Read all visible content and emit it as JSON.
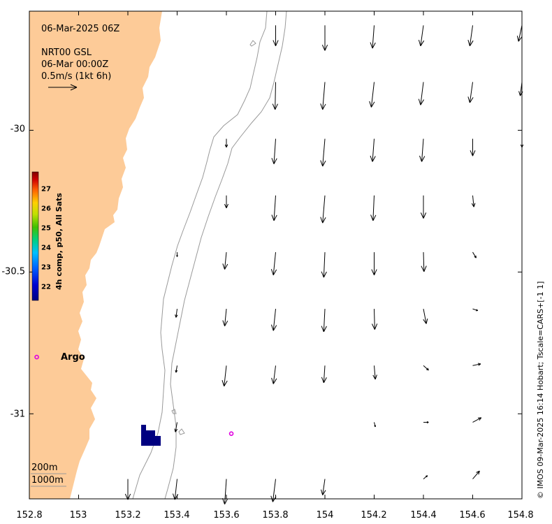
{
  "header": {
    "datetime": "06-Mar-2025 06Z",
    "product": "NRT00 GSL",
    "product_time": "06-Mar 00:00Z",
    "scale_label": "0.5m/s (1kt 6h)"
  },
  "axes": {
    "x_ticks": [
      "152.8",
      "153",
      "153.2",
      "153.4",
      "153.6",
      "153.8",
      "154",
      "154.2",
      "154.4",
      "154.6",
      "154.8"
    ],
    "y_ticks": [
      "-30",
      "-30.5",
      "-31"
    ],
    "x_range": [
      152.8,
      154.8
    ],
    "y_range": [
      -29.58,
      -31.3
    ]
  },
  "colorbar": {
    "label": "4h comp, p50, All Sats",
    "ticks": [
      "27",
      "26",
      "25",
      "24",
      "23",
      "22"
    ],
    "range": [
      21.4,
      27.9
    ]
  },
  "annotations": {
    "argo_label": "Argo",
    "isobath_200": "200m",
    "isobath_1000": "1000m"
  },
  "credit": "© IMOS 09-Mar-2025 16:14 Hobart; Tscale=CARS+[-1 1]",
  "colors": {
    "land": "#fdcb98",
    "argo_marker": "#e000e0",
    "sst_patch": "#000080",
    "isobath": "#999999"
  },
  "chart_data": {
    "type": "vector_field",
    "units": "m/s",
    "argo_floats": [
      {
        "lon": 152.83,
        "lat": -30.8
      },
      {
        "lon": 153.62,
        "lat": -31.07
      }
    ],
    "currents": [
      {
        "lon": 153.2,
        "lat": -31.23,
        "u": 0.0,
        "v": -0.36
      },
      {
        "lon": 153.4,
        "lat": -31.23,
        "u": -0.04,
        "v": -0.36
      },
      {
        "lon": 153.6,
        "lat": -31.23,
        "u": -0.03,
        "v": -0.44
      },
      {
        "lon": 153.8,
        "lat": -31.23,
        "u": -0.05,
        "v": -0.4
      },
      {
        "lon": 154.0,
        "lat": -31.23,
        "u": -0.04,
        "v": -0.28
      },
      {
        "lon": 154.4,
        "lat": -31.23,
        "u": 0.07,
        "v": 0.06
      },
      {
        "lon": 154.6,
        "lat": -31.23,
        "u": 0.12,
        "v": 0.14
      },
      {
        "lon": 153.4,
        "lat": -31.03,
        "u": -0.03,
        "v": -0.17
      },
      {
        "lon": 153.6,
        "lat": -31.03,
        "u": 0.0,
        "v": 0.0
      },
      {
        "lon": 154.2,
        "lat": -31.03,
        "u": 0.02,
        "v": -0.08
      },
      {
        "lon": 154.4,
        "lat": -31.03,
        "u": 0.09,
        "v": 0.0
      },
      {
        "lon": 154.6,
        "lat": -31.03,
        "u": 0.15,
        "v": 0.08
      },
      {
        "lon": 153.4,
        "lat": -30.83,
        "u": -0.02,
        "v": -0.12
      },
      {
        "lon": 153.6,
        "lat": -30.83,
        "u": -0.04,
        "v": -0.36
      },
      {
        "lon": 153.8,
        "lat": -30.83,
        "u": -0.04,
        "v": -0.32
      },
      {
        "lon": 154.0,
        "lat": -30.83,
        "u": -0.02,
        "v": -0.3
      },
      {
        "lon": 154.2,
        "lat": -30.83,
        "u": 0.02,
        "v": -0.24
      },
      {
        "lon": 154.4,
        "lat": -30.83,
        "u": 0.09,
        "v": -0.08
      },
      {
        "lon": 154.6,
        "lat": -30.83,
        "u": 0.14,
        "v": 0.03
      },
      {
        "lon": 153.4,
        "lat": -30.63,
        "u": -0.02,
        "v": -0.15
      },
      {
        "lon": 153.6,
        "lat": -30.63,
        "u": -0.03,
        "v": -0.3
      },
      {
        "lon": 153.8,
        "lat": -30.63,
        "u": -0.04,
        "v": -0.38
      },
      {
        "lon": 154.0,
        "lat": -30.63,
        "u": -0.02,
        "v": -0.4
      },
      {
        "lon": 154.2,
        "lat": -30.63,
        "u": 0.01,
        "v": -0.36
      },
      {
        "lon": 154.4,
        "lat": -30.63,
        "u": 0.05,
        "v": -0.26
      },
      {
        "lon": 154.6,
        "lat": -30.63,
        "u": 0.09,
        "v": -0.03
      },
      {
        "lon": 153.4,
        "lat": -30.43,
        "u": 0.0,
        "v": -0.08
      },
      {
        "lon": 153.6,
        "lat": -30.43,
        "u": -0.03,
        "v": -0.3
      },
      {
        "lon": 153.8,
        "lat": -30.43,
        "u": -0.04,
        "v": -0.4
      },
      {
        "lon": 154.0,
        "lat": -30.43,
        "u": -0.02,
        "v": -0.44
      },
      {
        "lon": 154.2,
        "lat": -30.43,
        "u": 0.0,
        "v": -0.4
      },
      {
        "lon": 154.4,
        "lat": -30.43,
        "u": 0.01,
        "v": -0.34
      },
      {
        "lon": 154.6,
        "lat": -30.43,
        "u": 0.06,
        "v": -0.1
      },
      {
        "lon": 153.2,
        "lat": -30.23,
        "u": 0.0,
        "v": 0.0
      },
      {
        "lon": 153.6,
        "lat": -30.23,
        "u": 0.0,
        "v": -0.22
      },
      {
        "lon": 153.8,
        "lat": -30.23,
        "u": -0.03,
        "v": -0.44
      },
      {
        "lon": 154.0,
        "lat": -30.23,
        "u": -0.04,
        "v": -0.48
      },
      {
        "lon": 154.2,
        "lat": -30.23,
        "u": -0.02,
        "v": -0.44
      },
      {
        "lon": 154.4,
        "lat": -30.23,
        "u": 0.0,
        "v": -0.4
      },
      {
        "lon": 154.6,
        "lat": -30.23,
        "u": 0.02,
        "v": -0.2
      },
      {
        "lon": 153.6,
        "lat": -30.03,
        "u": 0.0,
        "v": -0.15
      },
      {
        "lon": 153.8,
        "lat": -30.03,
        "u": -0.03,
        "v": -0.44
      },
      {
        "lon": 154.0,
        "lat": -30.03,
        "u": -0.04,
        "v": -0.48
      },
      {
        "lon": 154.2,
        "lat": -30.03,
        "u": -0.03,
        "v": -0.4
      },
      {
        "lon": 154.4,
        "lat": -30.03,
        "u": -0.03,
        "v": -0.4
      },
      {
        "lon": 154.6,
        "lat": -30.03,
        "u": 0.0,
        "v": -0.3
      },
      {
        "lon": 154.8,
        "lat": -30.03,
        "u": 0.0,
        "v": -0.15
      },
      {
        "lon": 153.8,
        "lat": -29.83,
        "u": -0.01,
        "v": -0.48
      },
      {
        "lon": 154.0,
        "lat": -29.83,
        "u": -0.04,
        "v": -0.48
      },
      {
        "lon": 154.2,
        "lat": -29.83,
        "u": -0.05,
        "v": -0.44
      },
      {
        "lon": 154.4,
        "lat": -29.83,
        "u": -0.05,
        "v": -0.4
      },
      {
        "lon": 154.6,
        "lat": -29.83,
        "u": -0.05,
        "v": -0.36
      },
      {
        "lon": 154.8,
        "lat": -29.83,
        "u": -0.03,
        "v": -0.24
      },
      {
        "lon": 153.8,
        "lat": -29.63,
        "u": 0.0,
        "v": -0.36
      },
      {
        "lon": 154.0,
        "lat": -29.63,
        "u": 0.0,
        "v": -0.44
      },
      {
        "lon": 154.2,
        "lat": -29.63,
        "u": -0.03,
        "v": -0.4
      },
      {
        "lon": 154.4,
        "lat": -29.63,
        "u": -0.05,
        "v": -0.36
      },
      {
        "lon": 154.6,
        "lat": -29.63,
        "u": -0.05,
        "v": -0.36
      },
      {
        "lon": 154.8,
        "lat": -29.63,
        "u": -0.06,
        "v": -0.28
      }
    ]
  }
}
